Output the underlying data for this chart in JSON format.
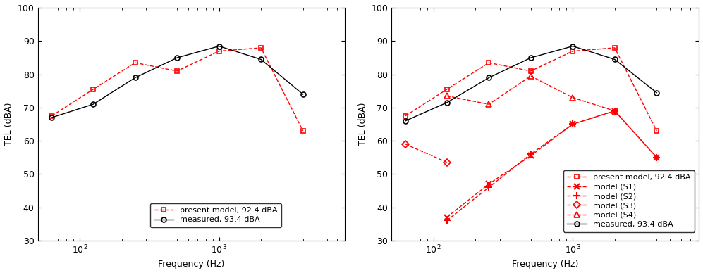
{
  "freq": [
    63,
    125,
    250,
    500,
    1000,
    2000,
    4000
  ],
  "left_present_model": [
    67.5,
    75.5,
    83.5,
    81.0,
    87.0,
    88.0,
    63.0
  ],
  "left_measured": [
    67.0,
    71.0,
    79.0,
    85.0,
    88.5,
    84.5,
    74.0
  ],
  "right_present_model": [
    67.5,
    75.5,
    83.5,
    81.0,
    87.0,
    88.0,
    63.0
  ],
  "right_measured": [
    66.0,
    71.5,
    79.0,
    85.0,
    88.5,
    84.5,
    74.5
  ],
  "freq_S1": [
    125,
    250,
    500,
    1000,
    2000,
    4000
  ],
  "vals_S1": [
    37.0,
    47.0,
    55.5,
    65.0,
    69.0,
    55.0
  ],
  "freq_S2": [
    125,
    250,
    500,
    1000,
    2000,
    4000
  ],
  "vals_S2": [
    36.0,
    46.0,
    56.0,
    65.0,
    69.0,
    55.0
  ],
  "freq_S3": [
    63,
    125
  ],
  "vals_S3": [
    59.0,
    53.5
  ],
  "freq_S4": [
    125,
    250,
    500,
    1000,
    2000
  ],
  "vals_S4": [
    73.5,
    71.0,
    79.5,
    73.0,
    69.0
  ],
  "ylabel": "TEL (dBA)",
  "xlabel": "Frequency (Hz)",
  "ylim": [
    30,
    100
  ],
  "color_red": "#FF0000",
  "color_black": "#000000"
}
